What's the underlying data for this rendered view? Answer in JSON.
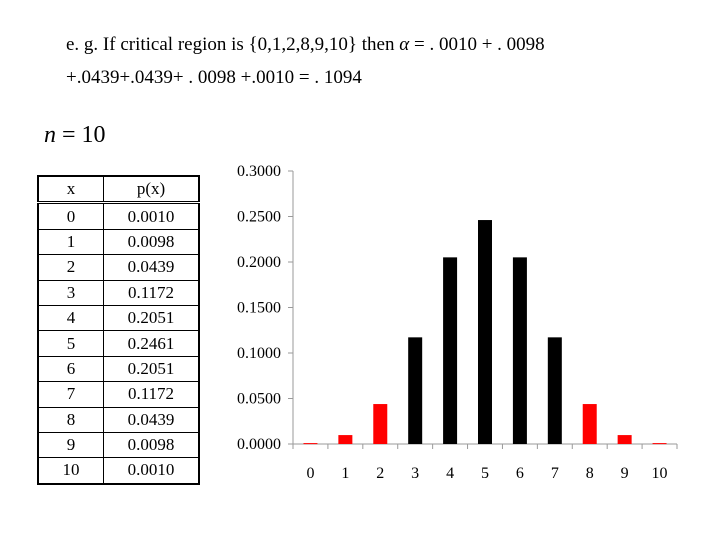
{
  "header": {
    "line1_prefix": "e. g. If critical region is {0,1,2,8,9,10} then",
    "alpha_symbol": "α",
    "line1_suffix": "= . 0010 + . 0098",
    "line2": "+.0439+.0439+ . 0098 +.0010 = . 1094"
  },
  "n_label": {
    "var": "n",
    "rest": "=  10"
  },
  "table": {
    "headers": [
      "x",
      "p(x)"
    ],
    "rows": [
      [
        "0",
        "0.0010"
      ],
      [
        "1",
        "0.0098"
      ],
      [
        "2",
        "0.0439"
      ],
      [
        "3",
        "0.1172"
      ],
      [
        "4",
        "0.2051"
      ],
      [
        "5",
        "0.2461"
      ],
      [
        "6",
        "0.2051"
      ],
      [
        "7",
        "0.1172"
      ],
      [
        "8",
        "0.0439"
      ],
      [
        "9",
        "0.0098"
      ],
      [
        "10",
        "0.0010"
      ]
    ]
  },
  "chart_data": {
    "type": "bar",
    "categories": [
      "0",
      "1",
      "2",
      "3",
      "4",
      "5",
      "6",
      "7",
      "8",
      "9",
      "10"
    ],
    "values": [
      0.001,
      0.0098,
      0.0439,
      0.1172,
      0.2051,
      0.2461,
      0.2051,
      0.1172,
      0.0439,
      0.0098,
      0.001
    ],
    "critical_region": [
      "0",
      "1",
      "2",
      "8",
      "9",
      "10"
    ],
    "colors": {
      "critical": "#ff0000",
      "normal": "#000000"
    },
    "ylim": [
      0,
      0.3
    ],
    "yticks": [
      "0.0000",
      "0.0500",
      "0.1000",
      "0.1500",
      "0.2000",
      "0.2500",
      "0.3000"
    ],
    "ytick_values": [
      0,
      0.05,
      0.1,
      0.15,
      0.2,
      0.25,
      0.3
    ],
    "grid": false,
    "legend": "none",
    "title": "",
    "xlabel": "",
    "ylabel": ""
  }
}
